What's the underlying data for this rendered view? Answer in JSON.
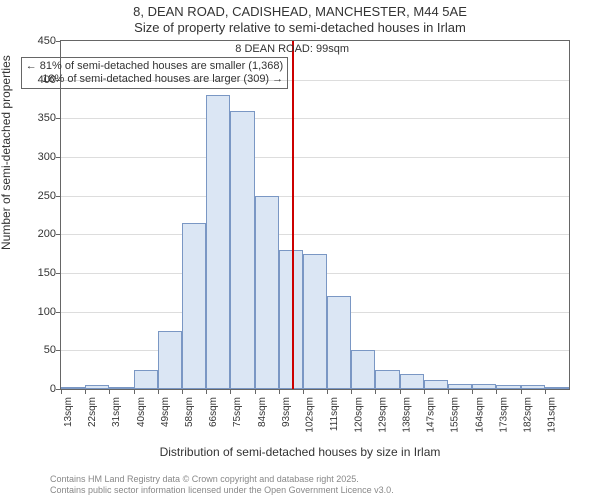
{
  "title_line1": "8, DEAN ROAD, CADISHEAD, MANCHESTER, M44 5AE",
  "title_line2": "Size of property relative to semi-detached houses in Irlam",
  "histogram": {
    "type": "histogram",
    "xlabel": "Distribution of semi-detached houses by size in Irlam",
    "ylabel": "Number of semi-detached properties",
    "ylim": [
      0,
      450
    ],
    "ytick_step": 50,
    "bin_start": 13,
    "bin_width": 9,
    "categories": [
      "13sqm",
      "22sqm",
      "31sqm",
      "40sqm",
      "49sqm",
      "58sqm",
      "66sqm",
      "75sqm",
      "84sqm",
      "93sqm",
      "102sqm",
      "111sqm",
      "120sqm",
      "129sqm",
      "138sqm",
      "147sqm",
      "155sqm",
      "164sqm",
      "173sqm",
      "182sqm",
      "191sqm"
    ],
    "values": [
      3,
      5,
      3,
      25,
      75,
      215,
      380,
      360,
      250,
      180,
      175,
      120,
      50,
      25,
      20,
      12,
      6,
      6,
      5,
      5,
      3
    ],
    "bar_fill": "#dbe6f4",
    "bar_border": "#7a97c4",
    "grid_color": "#dddddd",
    "axis_color": "#666666",
    "background_color": "#ffffff",
    "font_size_axis": 11,
    "font_size_tick": 10
  },
  "marker": {
    "value_sqm": 99,
    "line_color": "#cc0000",
    "annotation_title": "8 DEAN ROAD: 99sqm",
    "annotation_line1": "← 81% of semi-detached houses are smaller (1,368)",
    "annotation_line2": "18% of semi-detached houses are larger (309) →",
    "annotation_border": "#666666"
  },
  "attribution": [
    "Contains HM Land Registry data © Crown copyright and database right 2025.",
    "Contains public sector information licensed under the Open Government Licence v3.0."
  ]
}
